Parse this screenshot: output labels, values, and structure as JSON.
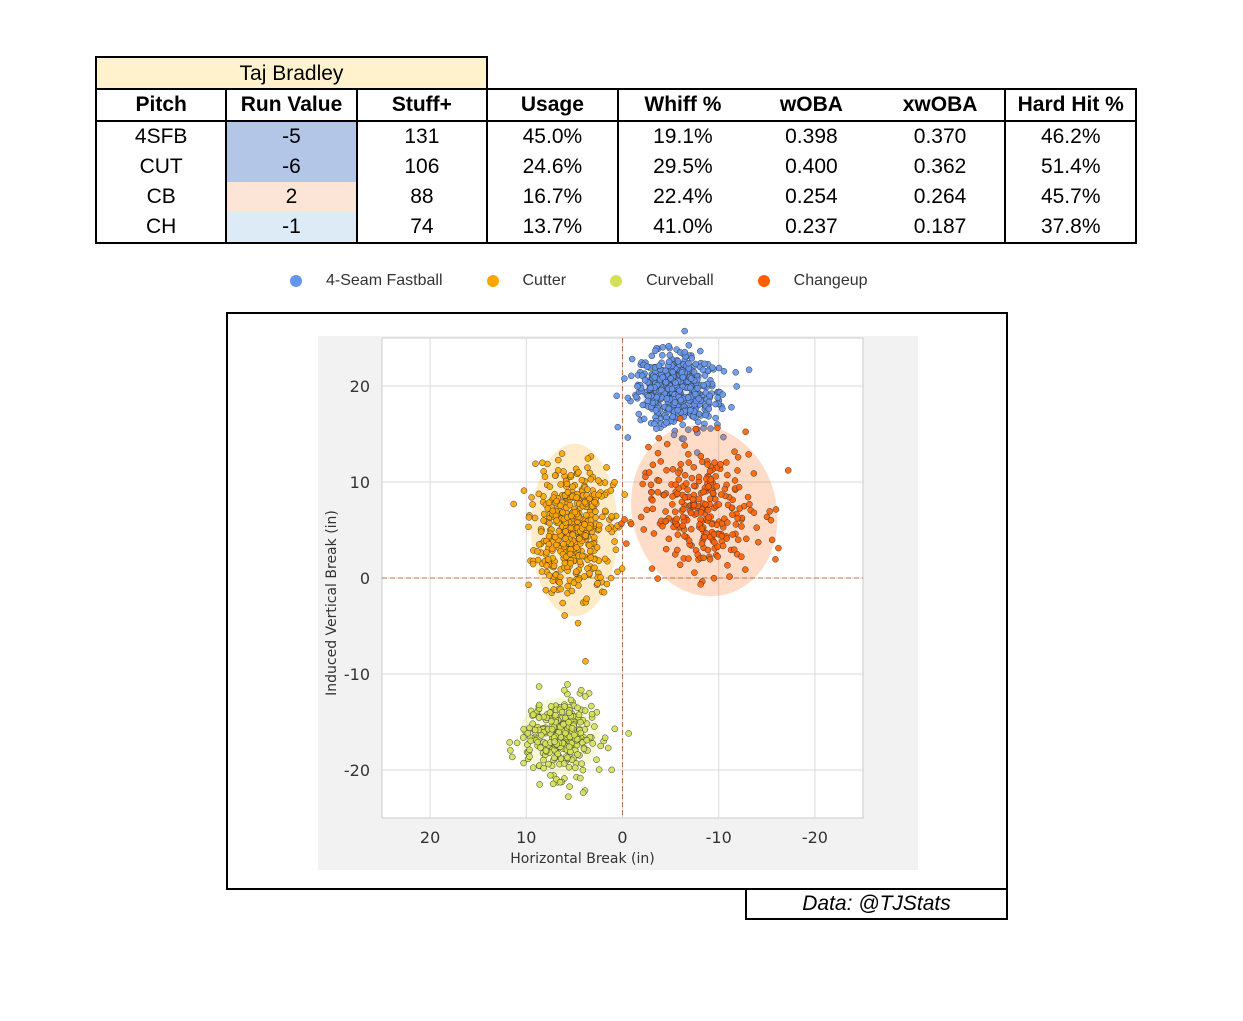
{
  "player": "Taj Bradley",
  "table": {
    "headers": [
      "Pitch",
      "Run Value",
      "Stuff+",
      "Usage",
      "Whiff %",
      "wOBA",
      "xwOBA",
      "Hard Hit %"
    ],
    "rows": [
      {
        "pitch": "4SFB",
        "run_value": "-5",
        "stuff": "131",
        "usage": "45.0%",
        "whiff": "19.1%",
        "woba": "0.398",
        "xwoba": "0.370",
        "hardhit": "46.2%",
        "rv_color": "#b4c6e7"
      },
      {
        "pitch": "CUT",
        "run_value": "-6",
        "stuff": "106",
        "usage": "24.6%",
        "whiff": "29.5%",
        "woba": "0.400",
        "xwoba": "0.362",
        "hardhit": "51.4%",
        "rv_color": "#b4c6e7"
      },
      {
        "pitch": "CB",
        "run_value": "2",
        "stuff": "88",
        "usage": "16.7%",
        "whiff": "22.4%",
        "woba": "0.254",
        "xwoba": "0.264",
        "hardhit": "45.7%",
        "rv_color": "#fce4d6"
      },
      {
        "pitch": "CH",
        "run_value": "-1",
        "stuff": "74",
        "usage": "13.7%",
        "whiff": "41.0%",
        "woba": "0.237",
        "xwoba": "0.187",
        "hardhit": "37.8%",
        "rv_color": "#ddebf7"
      }
    ]
  },
  "chart_data": {
    "type": "scatter",
    "title": "",
    "xlabel": "Horizontal Break (in)",
    "ylabel": "Induced Vertical Break (in)",
    "xlim": [
      25,
      -25
    ],
    "ylim": [
      -25,
      25
    ],
    "x_ticks": [
      20,
      10,
      0,
      -10,
      -20
    ],
    "y_ticks": [
      20,
      10,
      0,
      -10,
      -20
    ],
    "grid": true,
    "legend_position": "top",
    "series": [
      {
        "name": "4-Seam Fastball",
        "color": "#6495ed",
        "center": [
          -5.5,
          19.5
        ],
        "spread": [
          2.2,
          1.9
        ],
        "count": 520,
        "ellipse": {
          "rx": 3.6,
          "ry": 3.2,
          "angle": 0
        }
      },
      {
        "name": "Cutter",
        "color": "#ffa500",
        "center": [
          5.0,
          5.0
        ],
        "spread": [
          2.0,
          3.4
        ],
        "count": 460,
        "ellipse": {
          "rx": 4.5,
          "ry": 9.0,
          "angle": 0
        }
      },
      {
        "name": "Curveball",
        "color": "#d4e157",
        "center": [
          6.5,
          -16.5
        ],
        "spread": [
          1.9,
          2.0
        ],
        "count": 300,
        "ellipse": {
          "rx": 4.2,
          "ry": 4.0,
          "angle": 0
        }
      },
      {
        "name": "Changeup",
        "color": "#ff5f00",
        "center": [
          -8.5,
          7.0
        ],
        "spread": [
          2.9,
          3.3
        ],
        "count": 280,
        "ellipse": {
          "rx": 7.5,
          "ry": 9.0,
          "angle": -15
        }
      }
    ]
  },
  "credit": "Data: @TJStats"
}
